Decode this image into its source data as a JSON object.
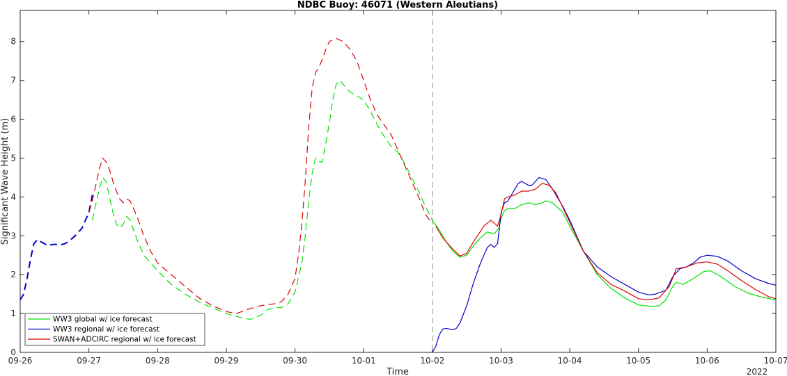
{
  "chart_data": {
    "type": "line",
    "title": "NDBC Buoy: 46071 (Western Aleutians)",
    "xlabel": "Time",
    "ylabel": "Significant Wave Height (m)",
    "year_label": "2022",
    "xlim": [
      0,
      11
    ],
    "ylim": [
      0,
      8.8
    ],
    "x_tick_labels": [
      "09-26",
      "09-27",
      "09-28",
      "09-29",
      "09-30",
      "10-01",
      "10-02",
      "10-03",
      "10-04",
      "10-05",
      "10-06",
      "10-07"
    ],
    "y_ticks": [
      0,
      1,
      2,
      3,
      4,
      5,
      6,
      7,
      8
    ],
    "forecast_start_x": 6,
    "legend": {
      "placement": "bottom-left",
      "entries": [
        "WW3 global w/ ice forecast",
        "WW3 regional w/ ice forecast",
        "SWAN+ADCIRC regional w/ ice forecast"
      ]
    },
    "series": [
      {
        "key": "global",
        "color": "#00e000",
        "hindcast": [
          [
            1.05,
            3.4
          ],
          [
            1.1,
            3.8
          ],
          [
            1.15,
            4.2
          ],
          [
            1.2,
            4.5
          ],
          [
            1.25,
            4.4
          ],
          [
            1.3,
            4.0
          ],
          [
            1.35,
            3.6
          ],
          [
            1.4,
            3.3
          ],
          [
            1.45,
            3.2
          ],
          [
            1.5,
            3.3
          ],
          [
            1.55,
            3.5
          ],
          [
            1.6,
            3.4
          ],
          [
            1.7,
            2.9
          ],
          [
            1.8,
            2.5
          ],
          [
            1.9,
            2.3
          ],
          [
            2.0,
            2.1
          ],
          [
            2.2,
            1.75
          ],
          [
            2.4,
            1.5
          ],
          [
            2.6,
            1.3
          ],
          [
            2.8,
            1.15
          ],
          [
            3.0,
            1.0
          ],
          [
            3.2,
            0.9
          ],
          [
            3.35,
            0.85
          ],
          [
            3.5,
            0.95
          ],
          [
            3.6,
            1.1
          ],
          [
            3.7,
            1.15
          ],
          [
            3.8,
            1.15
          ],
          [
            3.9,
            1.25
          ],
          [
            4.0,
            1.55
          ],
          [
            4.1,
            2.3
          ],
          [
            4.15,
            3.0
          ],
          [
            4.2,
            3.9
          ],
          [
            4.25,
            4.6
          ],
          [
            4.3,
            5.0
          ],
          [
            4.35,
            4.9
          ],
          [
            4.4,
            4.9
          ],
          [
            4.45,
            5.4
          ],
          [
            4.5,
            5.9
          ],
          [
            4.55,
            6.5
          ],
          [
            4.6,
            6.9
          ],
          [
            4.65,
            7.0
          ],
          [
            4.7,
            6.9
          ],
          [
            4.8,
            6.7
          ],
          [
            4.9,
            6.6
          ],
          [
            5.0,
            6.5
          ],
          [
            5.1,
            6.2
          ],
          [
            5.2,
            5.85
          ],
          [
            5.3,
            5.55
          ],
          [
            5.4,
            5.3
          ],
          [
            5.5,
            5.15
          ],
          [
            5.6,
            4.85
          ],
          [
            5.7,
            4.5
          ],
          [
            5.8,
            4.15
          ],
          [
            5.9,
            3.75
          ],
          [
            6.0,
            3.4
          ]
        ],
        "forecast": [
          [
            6.0,
            3.4
          ],
          [
            6.1,
            3.15
          ],
          [
            6.2,
            2.85
          ],
          [
            6.3,
            2.6
          ],
          [
            6.4,
            2.45
          ],
          [
            6.5,
            2.5
          ],
          [
            6.6,
            2.75
          ],
          [
            6.7,
            2.95
          ],
          [
            6.8,
            3.1
          ],
          [
            6.9,
            3.05
          ],
          [
            6.97,
            3.2
          ],
          [
            7.0,
            3.45
          ],
          [
            7.05,
            3.65
          ],
          [
            7.1,
            3.7
          ],
          [
            7.2,
            3.7
          ],
          [
            7.3,
            3.8
          ],
          [
            7.4,
            3.85
          ],
          [
            7.5,
            3.8
          ],
          [
            7.6,
            3.85
          ],
          [
            7.65,
            3.9
          ],
          [
            7.75,
            3.85
          ],
          [
            7.9,
            3.6
          ],
          [
            8.0,
            3.25
          ],
          [
            8.2,
            2.6
          ],
          [
            8.4,
            2.0
          ],
          [
            8.6,
            1.65
          ],
          [
            8.8,
            1.4
          ],
          [
            9.0,
            1.22
          ],
          [
            9.2,
            1.18
          ],
          [
            9.3,
            1.2
          ],
          [
            9.4,
            1.35
          ],
          [
            9.5,
            1.7
          ],
          [
            9.55,
            1.8
          ],
          [
            9.65,
            1.75
          ],
          [
            9.8,
            1.9
          ],
          [
            9.95,
            2.08
          ],
          [
            10.05,
            2.1
          ],
          [
            10.2,
            1.95
          ],
          [
            10.4,
            1.7
          ],
          [
            10.6,
            1.52
          ],
          [
            10.8,
            1.42
          ],
          [
            11.0,
            1.35
          ]
        ]
      },
      {
        "key": "regional",
        "color": "#0000cc",
        "hindcast": [
          [
            0.0,
            1.35
          ],
          [
            0.05,
            1.5
          ],
          [
            0.1,
            1.9
          ],
          [
            0.15,
            2.4
          ],
          [
            0.2,
            2.8
          ],
          [
            0.25,
            2.9
          ],
          [
            0.3,
            2.85
          ],
          [
            0.35,
            2.8
          ],
          [
            0.4,
            2.75
          ],
          [
            0.45,
            2.77
          ],
          [
            0.5,
            2.78
          ],
          [
            0.55,
            2.78
          ],
          [
            0.6,
            2.77
          ],
          [
            0.65,
            2.8
          ],
          [
            0.7,
            2.85
          ],
          [
            0.8,
            3.0
          ],
          [
            0.9,
            3.2
          ],
          [
            1.0,
            3.6
          ],
          [
            1.05,
            4.05
          ]
        ],
        "forecast": [
          [
            6.0,
            0.0
          ],
          [
            6.05,
            0.15
          ],
          [
            6.1,
            0.45
          ],
          [
            6.15,
            0.6
          ],
          [
            6.2,
            0.62
          ],
          [
            6.25,
            0.6
          ],
          [
            6.3,
            0.58
          ],
          [
            6.35,
            0.62
          ],
          [
            6.4,
            0.75
          ],
          [
            6.5,
            1.2
          ],
          [
            6.6,
            1.8
          ],
          [
            6.7,
            2.3
          ],
          [
            6.8,
            2.7
          ],
          [
            6.85,
            2.78
          ],
          [
            6.9,
            2.7
          ],
          [
            6.95,
            2.8
          ],
          [
            7.0,
            3.6
          ],
          [
            7.05,
            3.85
          ],
          [
            7.1,
            3.9
          ],
          [
            7.2,
            4.2
          ],
          [
            7.25,
            4.35
          ],
          [
            7.3,
            4.4
          ],
          [
            7.4,
            4.3
          ],
          [
            7.45,
            4.3
          ],
          [
            7.55,
            4.5
          ],
          [
            7.65,
            4.45
          ],
          [
            7.75,
            4.2
          ],
          [
            7.9,
            3.75
          ],
          [
            8.0,
            3.4
          ],
          [
            8.2,
            2.6
          ],
          [
            8.4,
            2.2
          ],
          [
            8.6,
            1.95
          ],
          [
            8.8,
            1.75
          ],
          [
            9.0,
            1.55
          ],
          [
            9.15,
            1.48
          ],
          [
            9.25,
            1.5
          ],
          [
            9.4,
            1.6
          ],
          [
            9.5,
            1.95
          ],
          [
            9.6,
            2.15
          ],
          [
            9.7,
            2.2
          ],
          [
            9.8,
            2.3
          ],
          [
            9.9,
            2.45
          ],
          [
            10.0,
            2.5
          ],
          [
            10.15,
            2.47
          ],
          [
            10.3,
            2.35
          ],
          [
            10.5,
            2.1
          ],
          [
            10.7,
            1.9
          ],
          [
            10.9,
            1.77
          ],
          [
            11.0,
            1.73
          ]
        ]
      },
      {
        "key": "swan",
        "color": "#dd0000",
        "hindcast": [
          [
            1.0,
            3.6
          ],
          [
            1.05,
            3.9
          ],
          [
            1.1,
            4.3
          ],
          [
            1.15,
            4.7
          ],
          [
            1.2,
            5.0
          ],
          [
            1.25,
            4.9
          ],
          [
            1.3,
            4.7
          ],
          [
            1.35,
            4.4
          ],
          [
            1.4,
            4.15
          ],
          [
            1.45,
            3.95
          ],
          [
            1.5,
            3.85
          ],
          [
            1.55,
            3.95
          ],
          [
            1.6,
            3.9
          ],
          [
            1.7,
            3.5
          ],
          [
            1.8,
            3.0
          ],
          [
            1.9,
            2.6
          ],
          [
            2.0,
            2.3
          ],
          [
            2.2,
            2.0
          ],
          [
            2.4,
            1.7
          ],
          [
            2.6,
            1.4
          ],
          [
            2.8,
            1.2
          ],
          [
            3.0,
            1.05
          ],
          [
            3.15,
            1.0
          ],
          [
            3.3,
            1.1
          ],
          [
            3.5,
            1.2
          ],
          [
            3.7,
            1.25
          ],
          [
            3.8,
            1.3
          ],
          [
            3.9,
            1.5
          ],
          [
            4.0,
            1.9
          ],
          [
            4.05,
            2.5
          ],
          [
            4.1,
            3.3
          ],
          [
            4.15,
            4.4
          ],
          [
            4.2,
            5.8
          ],
          [
            4.25,
            6.8
          ],
          [
            4.3,
            7.2
          ],
          [
            4.35,
            7.35
          ],
          [
            4.4,
            7.55
          ],
          [
            4.45,
            7.8
          ],
          [
            4.5,
            8.0
          ],
          [
            4.6,
            8.08
          ],
          [
            4.7,
            8.0
          ],
          [
            4.8,
            7.8
          ],
          [
            4.9,
            7.5
          ],
          [
            5.0,
            7.0
          ],
          [
            5.1,
            6.5
          ],
          [
            5.2,
            6.1
          ],
          [
            5.3,
            5.85
          ],
          [
            5.4,
            5.6
          ],
          [
            5.5,
            5.2
          ],
          [
            5.6,
            4.8
          ],
          [
            5.7,
            4.4
          ],
          [
            5.8,
            4.0
          ],
          [
            5.9,
            3.55
          ],
          [
            6.0,
            3.3
          ]
        ],
        "forecast": [
          [
            6.05,
            3.25
          ],
          [
            6.15,
            2.95
          ],
          [
            6.3,
            2.65
          ],
          [
            6.4,
            2.48
          ],
          [
            6.5,
            2.55
          ],
          [
            6.6,
            2.85
          ],
          [
            6.75,
            3.25
          ],
          [
            6.85,
            3.4
          ],
          [
            6.95,
            3.25
          ],
          [
            7.0,
            3.55
          ],
          [
            7.05,
            3.95
          ],
          [
            7.1,
            4.0
          ],
          [
            7.2,
            4.05
          ],
          [
            7.3,
            4.15
          ],
          [
            7.4,
            4.15
          ],
          [
            7.5,
            4.2
          ],
          [
            7.6,
            4.35
          ],
          [
            7.7,
            4.3
          ],
          [
            7.8,
            4.1
          ],
          [
            8.0,
            3.35
          ],
          [
            8.2,
            2.6
          ],
          [
            8.4,
            2.05
          ],
          [
            8.6,
            1.75
          ],
          [
            8.8,
            1.58
          ],
          [
            9.0,
            1.38
          ],
          [
            9.15,
            1.35
          ],
          [
            9.3,
            1.4
          ],
          [
            9.45,
            1.7
          ],
          [
            9.55,
            2.15
          ],
          [
            9.7,
            2.2
          ],
          [
            9.85,
            2.3
          ],
          [
            10.0,
            2.33
          ],
          [
            10.15,
            2.27
          ],
          [
            10.3,
            2.1
          ],
          [
            10.5,
            1.85
          ],
          [
            10.7,
            1.62
          ],
          [
            10.9,
            1.43
          ],
          [
            11.0,
            1.38
          ]
        ]
      }
    ]
  }
}
